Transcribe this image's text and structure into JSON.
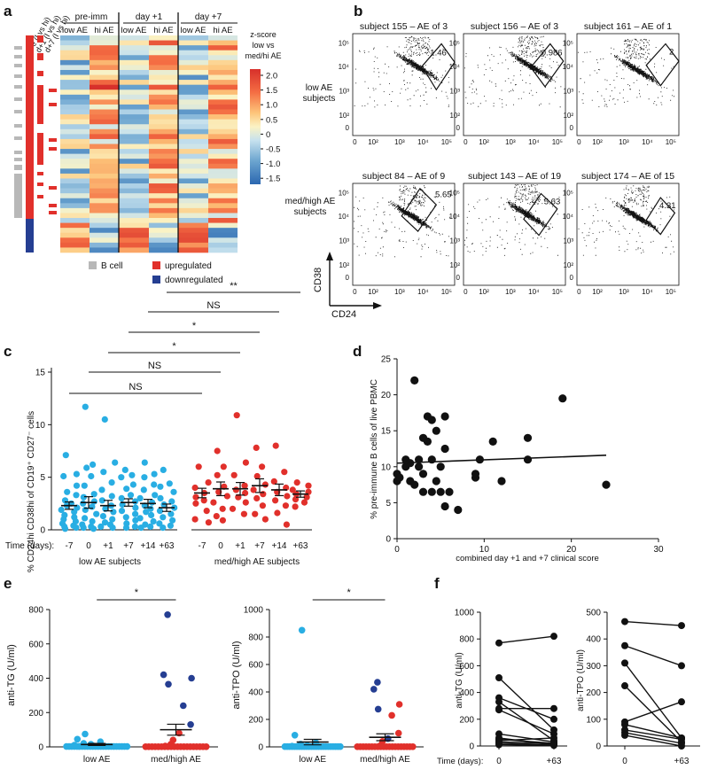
{
  "panel_labels": {
    "a": "a",
    "b": "b",
    "c": "c",
    "d": "d",
    "e": "e",
    "f": "f"
  },
  "colors": {
    "blue": "#29aee3",
    "red": "#e1302b",
    "navy": "#253e92",
    "grey": "#b8b8b8",
    "black": "#111111"
  },
  "panel_a": {
    "row_labels": [
      "pre (l vs hi)",
      "d+1 (l vs hi)",
      "d+7 (l vs hi)"
    ],
    "groups": [
      "pre-imm",
      "day +1",
      "day +7"
    ],
    "columns": [
      "low AE",
      "hi AE",
      "low AE",
      "hi AE",
      "low AE",
      "hi AE"
    ],
    "colorbar_title": [
      "z-score",
      "low vs",
      "med/hi AE"
    ],
    "colorbar_ticks": [
      "2.0",
      "1.5",
      "1.0",
      "0.5",
      "0",
      "-0.5",
      "-1.0",
      "-1.5"
    ],
    "legend": {
      "bcell": "B cell",
      "up": "upregulated",
      "down": "downregulated"
    }
  },
  "panel_b": {
    "titles": [
      "subject 155 – AE of 3",
      "subject 156 – AE of 3",
      "subject 161 – AE of 1",
      "subject 84 – AE of 9",
      "subject 143 – AE of 19",
      "subject 174 – AE of 15"
    ],
    "gate_values": [
      "1.46",
      "0.986",
      "2",
      "5.65",
      "5.63",
      "4.31"
    ],
    "row_labels": [
      [
        "low AE",
        "subjects"
      ],
      [
        "med/high AE",
        "subjects"
      ]
    ],
    "xlabel": "CD24",
    "ylabel": "CD38",
    "xticks": [
      "0",
      "10²",
      "10³",
      "10⁴",
      "10⁵"
    ],
    "yticks": [
      "0",
      "10²",
      "10³",
      "10⁴",
      "10⁵"
    ]
  },
  "chart_data": [
    {
      "id": "c",
      "type": "scatter",
      "ylabel": "% CD24hi CD38hi of CD19⁺ CD27⁻ cells",
      "xlabel_prefix": "Time (days):",
      "categories": [
        "-7",
        "0",
        "+1",
        "+7",
        "+14",
        "+63"
      ],
      "ylim": [
        0,
        15
      ],
      "yticks": [
        0,
        5,
        10,
        15
      ],
      "group_labels": [
        "low AE subjects",
        "med/high AE subjects"
      ],
      "series": [
        {
          "name": "low AE subjects",
          "color": "#29aee3",
          "means": [
            2.3,
            2.6,
            2.3,
            2.6,
            2.5,
            2.1
          ],
          "sems": [
            0.35,
            0.55,
            0.5,
            0.35,
            0.4,
            0.35
          ],
          "values": [
            [
              7.1,
              5.3,
              5.1,
              4.2,
              3.6,
              3.3,
              2.8,
              2.5,
              2.3,
              2.1,
              1.9,
              1.7,
              1.4,
              1.2,
              1.0,
              0.8,
              0.6,
              0.4,
              0.3,
              0.2,
              0.1
            ],
            [
              11.7,
              6.2,
              5.9,
              5.1,
              4.2,
              3.4,
              3.1,
              2.7,
              2.5,
              2.2,
              1.9,
              1.5,
              1.1,
              0.8,
              0.5,
              0.3,
              0.2,
              0.1
            ],
            [
              10.5,
              6.4,
              5.5,
              4.5,
              3.8,
              3.2,
              2.8,
              2.3,
              2.0,
              1.7,
              1.3,
              1.0,
              0.7,
              0.5,
              0.3,
              0.2
            ],
            [
              5.7,
              5.2,
              5.0,
              4.3,
              3.9,
              3.3,
              3.0,
              2.7,
              2.4,
              2.1,
              1.8,
              1.5,
              1.2,
              0.9,
              0.6,
              0.3,
              0.2
            ],
            [
              6.4,
              5.3,
              5.0,
              4.3,
              3.8,
              3.3,
              3.0,
              2.6,
              2.3,
              2.0,
              1.7,
              1.4,
              1.1,
              0.8,
              0.5,
              0.3,
              0.2
            ],
            [
              5.7,
              4.4,
              4.1,
              3.6,
              3.0,
              2.7,
              2.4,
              2.1,
              1.8,
              1.5,
              1.2,
              0.9,
              0.6,
              0.4,
              0.2
            ]
          ]
        },
        {
          "name": "med/high AE subjects",
          "color": "#e1302b",
          "means": [
            3.5,
            3.9,
            3.9,
            4.2,
            3.8,
            3.4
          ],
          "sems": [
            0.45,
            0.65,
            0.6,
            0.65,
            0.55,
            0.3
          ],
          "values": [
            [
              6.0,
              4.5,
              4.0,
              3.5,
              3.1,
              2.8,
              2.5,
              1.8,
              1.0,
              0.7
            ],
            [
              7.5,
              6.0,
              5.2,
              4.1,
              3.6,
              3.2,
              2.6,
              2.0,
              1.3,
              0.9
            ],
            [
              10.9,
              6.4,
              5.2,
              4.2,
              3.8,
              3.5,
              3.1,
              2.6,
              2.0,
              1.5
            ],
            [
              7.8,
              6.0,
              5.1,
              4.3,
              3.8,
              3.4,
              3.0,
              2.3,
              1.5,
              1.0
            ],
            [
              8.0,
              5.5,
              4.6,
              4.0,
              3.6,
              3.2,
              2.8,
              2.3,
              1.6,
              0.5
            ],
            [
              4.5,
              4.2,
              3.8,
              3.6,
              3.4,
              3.1,
              2.9,
              2.6,
              2.2
            ]
          ]
        }
      ],
      "significance": [
        {
          "from": 0,
          "to": 6,
          "label": "NS"
        },
        {
          "from": 1,
          "to": 7,
          "label": "NS"
        },
        {
          "from": 2,
          "to": 8,
          "label": "*"
        },
        {
          "from": 3,
          "to": 9,
          "label": "*"
        },
        {
          "from": 4,
          "to": 10,
          "label": "NS"
        },
        {
          "from": 5,
          "to": 11,
          "label": "**"
        }
      ]
    },
    {
      "id": "d",
      "type": "scatter",
      "xlabel": "combined day +1 and +7 clinical score",
      "ylabel": "% pre-immune B cells of live PBMC",
      "xlim": [
        0,
        30
      ],
      "ylim": [
        0,
        25
      ],
      "xticks": [
        0,
        10,
        20,
        30
      ],
      "yticks": [
        0,
        5,
        10,
        15,
        20,
        25
      ],
      "points": [
        [
          0,
          8.0
        ],
        [
          0,
          9.0
        ],
        [
          0.3,
          8.5
        ],
        [
          1,
          10.0
        ],
        [
          1,
          11.0
        ],
        [
          1.5,
          10.5
        ],
        [
          1.5,
          8.0
        ],
        [
          2,
          22.0
        ],
        [
          2,
          7.5
        ],
        [
          2.5,
          10.0
        ],
        [
          2.5,
          11.0
        ],
        [
          3,
          14.0
        ],
        [
          3,
          9.0
        ],
        [
          3,
          6.5
        ],
        [
          3.5,
          17.0
        ],
        [
          3.5,
          13.5
        ],
        [
          4,
          16.5
        ],
        [
          4,
          11.0
        ],
        [
          4,
          6.5
        ],
        [
          4.5,
          15.0
        ],
        [
          4.5,
          8.0
        ],
        [
          5,
          6.5
        ],
        [
          5,
          10.0
        ],
        [
          5.5,
          12.5
        ],
        [
          5.5,
          4.5
        ],
        [
          5.5,
          17.0
        ],
        [
          6,
          6.5
        ],
        [
          7,
          4.0
        ],
        [
          9,
          8.5
        ],
        [
          9,
          9.0
        ],
        [
          9.5,
          11.0
        ],
        [
          11,
          13.5
        ],
        [
          12,
          8.0
        ],
        [
          15,
          14.0
        ],
        [
          15,
          11.0
        ],
        [
          19,
          19.5
        ],
        [
          24,
          7.5
        ]
      ],
      "regression": [
        [
          0,
          10.5
        ],
        [
          24,
          11.6
        ]
      ]
    },
    {
      "id": "e1",
      "type": "scatter",
      "ylabel": "anti-TG (U/ml)",
      "categories": [
        "low AE",
        "med/high AE"
      ],
      "ylim": [
        0,
        800
      ],
      "yticks": [
        0,
        200,
        400,
        600,
        800
      ],
      "significance": "*",
      "means": [
        14,
        100
      ],
      "sems": [
        6,
        32
      ],
      "low_values": [
        75,
        45,
        30,
        20,
        15,
        10,
        5,
        3
      ],
      "high_values": [
        {
          "v": 770,
          "c": "navy"
        },
        {
          "v": 420,
          "c": "navy"
        },
        {
          "v": 400,
          "c": "navy"
        },
        {
          "v": 365,
          "c": "navy"
        },
        {
          "v": 240,
          "c": "navy"
        },
        {
          "v": 130,
          "c": "navy"
        },
        {
          "v": 80,
          "c": "red"
        },
        {
          "v": 40,
          "c": "red"
        },
        {
          "v": 15,
          "c": "red"
        },
        {
          "v": 5,
          "c": "red"
        }
      ]
    },
    {
      "id": "e2",
      "type": "scatter",
      "ylabel": "anti-TPO (U/ml)",
      "categories": [
        "low AE",
        "med/high AE"
      ],
      "ylim": [
        0,
        1000
      ],
      "yticks": [
        0,
        200,
        400,
        600,
        800,
        1000
      ],
      "significance": "*",
      "means": [
        35,
        70
      ],
      "sems": [
        20,
        25
      ],
      "low_values": [
        850,
        85,
        30,
        20,
        10,
        5
      ],
      "high_values": [
        {
          "v": 470,
          "c": "navy"
        },
        {
          "v": 420,
          "c": "navy"
        },
        {
          "v": 310,
          "c": "red"
        },
        {
          "v": 275,
          "c": "navy"
        },
        {
          "v": 230,
          "c": "red"
        },
        {
          "v": 100,
          "c": "red"
        },
        {
          "v": 60,
          "c": "navy"
        },
        {
          "v": 40,
          "c": "red"
        },
        {
          "v": 10,
          "c": "red"
        }
      ]
    },
    {
      "id": "f1",
      "type": "line",
      "ylabel": "anti-TG (U/ml)",
      "xlabel_prefix": "Time (days):",
      "categories": [
        "0",
        "+63"
      ],
      "ylim": [
        0,
        1000
      ],
      "yticks": [
        0,
        200,
        400,
        600,
        800,
        1000
      ],
      "pairs": [
        [
          770,
          820
        ],
        [
          510,
          120
        ],
        [
          360,
          200
        ],
        [
          330,
          40
        ],
        [
          280,
          280
        ],
        [
          270,
          90
        ],
        [
          90,
          30
        ],
        [
          60,
          10
        ],
        [
          50,
          20
        ],
        [
          40,
          60
        ],
        [
          30,
          20
        ],
        [
          20,
          10
        ],
        [
          10,
          5
        ]
      ]
    },
    {
      "id": "f2",
      "type": "line",
      "ylabel": "anti-TPO (U/ml)",
      "categories": [
        "0",
        "+63"
      ],
      "ylim": [
        0,
        500
      ],
      "yticks": [
        0,
        100,
        200,
        300,
        400,
        500
      ],
      "pairs": [
        [
          465,
          450
        ],
        [
          375,
          300
        ],
        [
          310,
          30
        ],
        [
          225,
          15
        ],
        [
          90,
          165
        ],
        [
          80,
          30
        ],
        [
          60,
          25
        ],
        [
          50,
          10
        ],
        [
          40,
          0
        ]
      ]
    }
  ]
}
